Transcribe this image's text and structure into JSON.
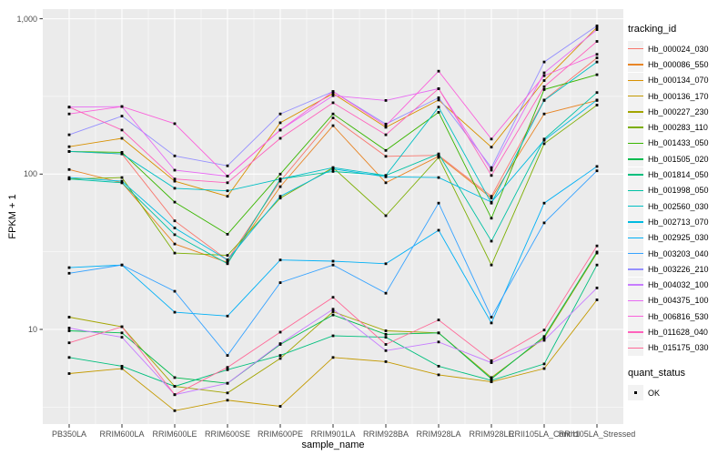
{
  "chart_data": {
    "type": "line",
    "xlabel": "sample_name",
    "ylabel": "FPKM + 1",
    "y_scale": "log10",
    "y_ticks": [
      10,
      100,
      1000
    ],
    "y_minor_ticks": [
      3.162,
      31.623,
      316.228
    ],
    "ylim": [
      2.4,
      1160
    ],
    "legend_title": "tracking_id",
    "point_legend": {
      "title": "quant_status",
      "label": "OK"
    },
    "style": {
      "panel_bg": "#EBEBEB",
      "grid_color": "#FFFFFF",
      "point_color": "#000000",
      "tick_color": "#333333",
      "axis_text_color": "#4D4D4D",
      "legend_key_bg": "#F2F2F2"
    },
    "categories": [
      "PB350LA",
      "RRIM600LA",
      "RRIM600LE",
      "RRIM600SE",
      "RRIM600PE",
      "RRIM901LA",
      "RRIM928BA",
      "RRIM928LA",
      "RRIM928LE",
      "RRII105LA_Control",
      "RRII105LA_Stressed"
    ],
    "series": [
      {
        "name": "Hb_000024_030",
        "color": "#F8766D",
        "values": [
          140,
          135,
          50,
          28,
          90,
          230,
          130,
          132,
          72,
          300,
          560
        ]
      },
      {
        "name": "Hb_000086_550",
        "color": "#E88526",
        "values": [
          107,
          88,
          35.5,
          27,
          83,
          205,
          88,
          130,
          70,
          244,
          298
        ]
      },
      {
        "name": "Hb_000134_070",
        "color": "#D89000",
        "values": [
          150,
          170,
          90,
          72,
          214,
          330,
          200,
          300,
          149,
          400,
          880
        ]
      },
      {
        "name": "Hb_000136_170",
        "color": "#C49A00",
        "values": [
          5.2,
          5.6,
          3.0,
          3.5,
          3.2,
          6.6,
          6.2,
          5.1,
          4.6,
          5.6,
          15.5
        ]
      },
      {
        "name": "Hb_000227_230",
        "color": "#A3A500",
        "values": [
          12,
          10.4,
          4.3,
          3.9,
          6.5,
          13,
          9.8,
          9.5,
          4.9,
          8.8,
          31
        ]
      },
      {
        "name": "Hb_000283_110",
        "color": "#7CAE00",
        "values": [
          93,
          95,
          31,
          30,
          70,
          110,
          54,
          128,
          26,
          157,
          278
        ]
      },
      {
        "name": "Hb_001433_050",
        "color": "#39B600",
        "values": [
          140,
          138,
          66,
          41,
          100,
          244,
          142,
          250,
          52,
          350,
          436
        ]
      },
      {
        "name": "Hb_001505_020",
        "color": "#00BB4E",
        "values": [
          9.8,
          9.5,
          4.9,
          4.5,
          8.0,
          12.4,
          9.3,
          9.5,
          4.8,
          9.0,
          31.5
        ]
      },
      {
        "name": "Hb_001814_050",
        "color": "#00BF7D",
        "values": [
          6.6,
          5.8,
          4.3,
          5.5,
          6.8,
          9.1,
          8.9,
          5.8,
          4.7,
          6.0,
          26
        ]
      },
      {
        "name": "Hb_001998_050",
        "color": "#00C1A3",
        "values": [
          93,
          88,
          40.7,
          26.5,
          93,
          104,
          98,
          135,
          37,
          168,
          335
        ]
      },
      {
        "name": "Hb_002560_030",
        "color": "#00BFC4",
        "values": [
          140,
          135,
          81,
          78,
          93,
          110,
          98,
          270,
          65,
          298,
          527
        ]
      },
      {
        "name": "Hb_002713_070",
        "color": "#00BAE0",
        "values": [
          95,
          90,
          45,
          28,
          72,
          108,
          96,
          95,
          66,
          165,
          300
        ]
      },
      {
        "name": "Hb_002925_030",
        "color": "#00B0F6",
        "values": [
          25,
          26,
          12.9,
          12.2,
          28,
          27.5,
          26.5,
          43.5,
          11,
          65,
          112
        ]
      },
      {
        "name": "Hb_003203_040",
        "color": "#35A2FF",
        "values": [
          23,
          26,
          17.6,
          6.8,
          20,
          26,
          17.1,
          65,
          12,
          48.5,
          105
        ]
      },
      {
        "name": "Hb_003226_210",
        "color": "#9590FF",
        "values": [
          179,
          236,
          131,
          113,
          244,
          340,
          210,
          310,
          110,
          527,
          900
        ]
      },
      {
        "name": "Hb_004032_100",
        "color": "#C77CFF",
        "values": [
          10.2,
          8.9,
          3.8,
          4.5,
          8.1,
          13.5,
          7.3,
          8.3,
          6.1,
          8.5,
          18.5
        ]
      },
      {
        "name": "Hb_004375_100",
        "color": "#E76BF3",
        "values": [
          270,
          272,
          106,
          97,
          192,
          320,
          298,
          355,
          106,
          449,
          850
        ]
      },
      {
        "name": "Hb_006816_530",
        "color": "#FA62DB",
        "values": [
          244,
          272,
          211,
          97,
          192,
          340,
          205,
          460,
          168,
          430,
          590
        ]
      },
      {
        "name": "Hb_011628_040",
        "color": "#FF62BC",
        "values": [
          270,
          192,
          93,
          88,
          170,
          288,
          179,
          355,
          98,
          365,
          715
        ]
      },
      {
        "name": "Hb_015175_030",
        "color": "#FF6A98",
        "values": [
          8.2,
          10.4,
          3.8,
          5.7,
          9.6,
          16.1,
          8.0,
          11.5,
          6.3,
          9.9,
          34.5
        ]
      }
    ]
  }
}
